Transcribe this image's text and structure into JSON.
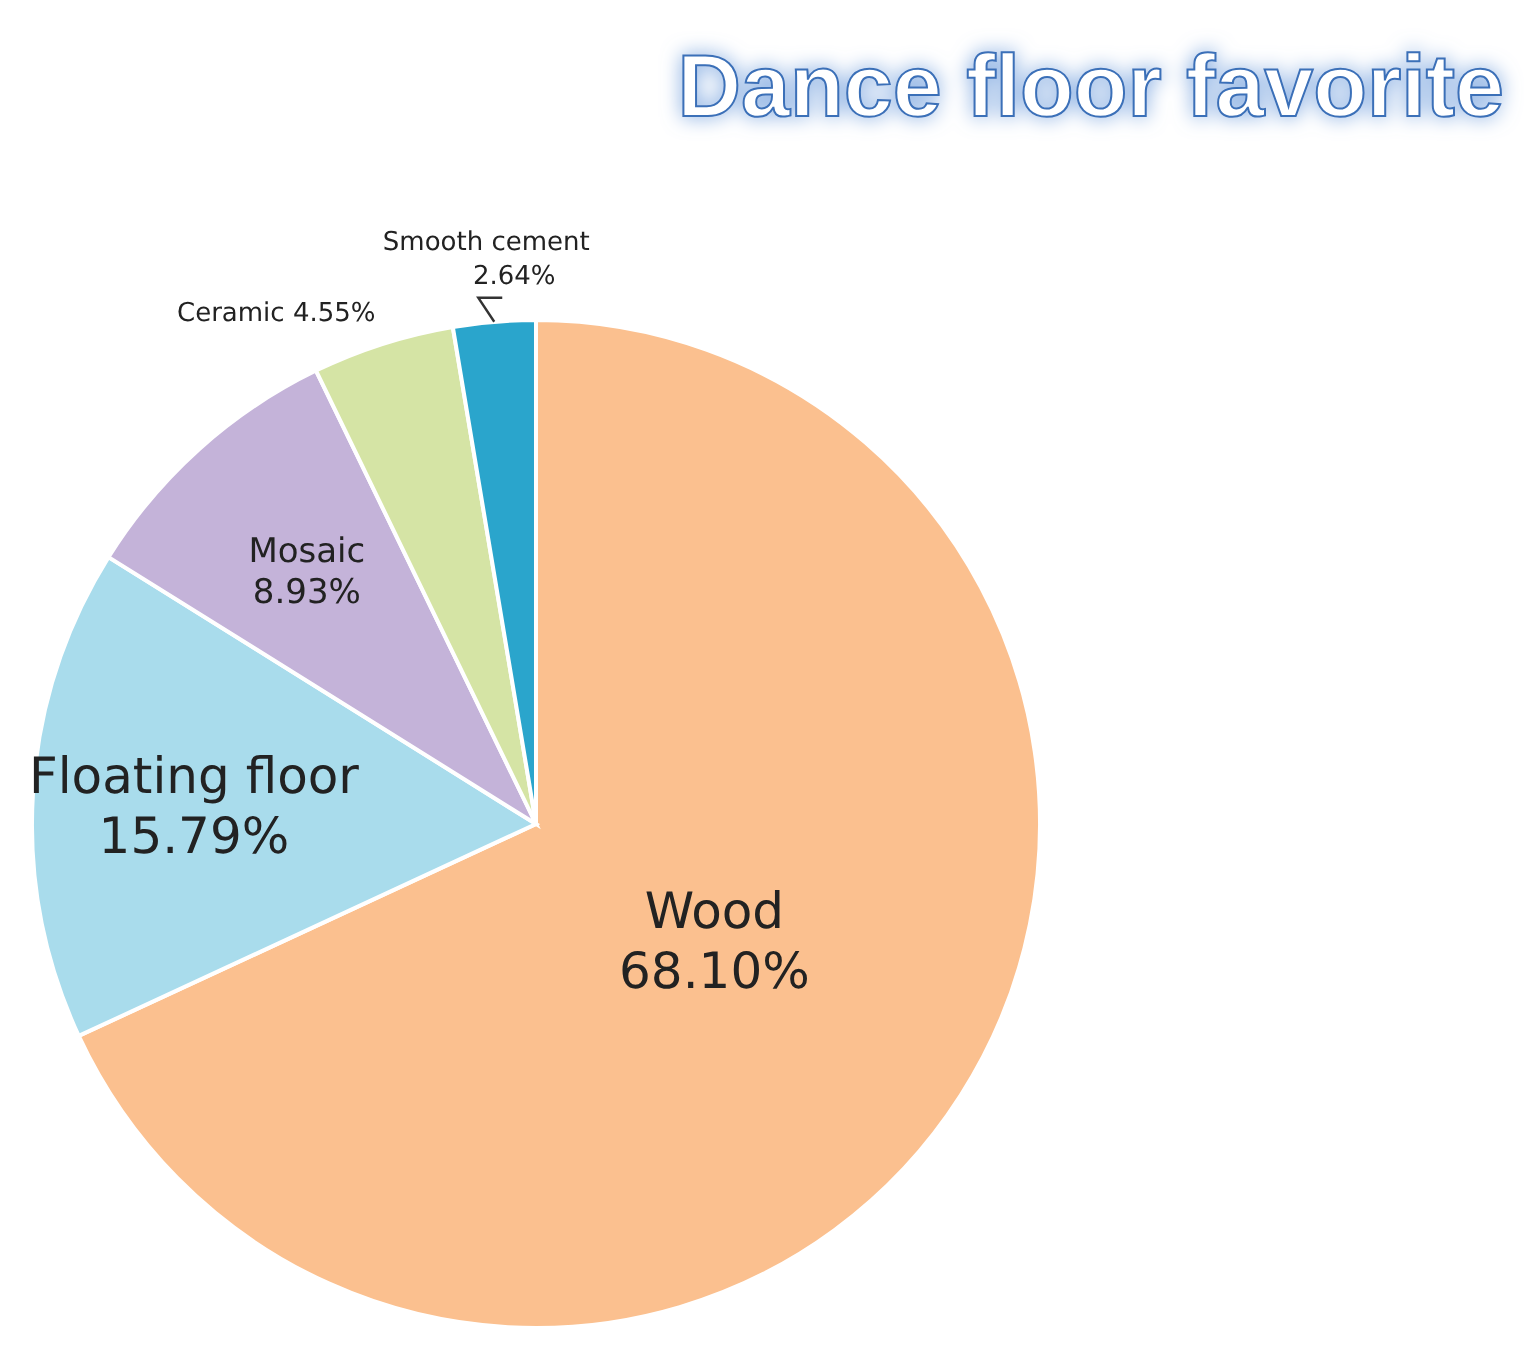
{
  "chart_data": {
    "type": "pie",
    "title": "Dance floor favorite",
    "categories": [
      "Wood",
      "Floating floor",
      "Mosaic",
      "Ceramic",
      "Smooth cement"
    ],
    "values": [
      68.1,
      15.79,
      8.93,
      4.55,
      2.64
    ],
    "value_labels": [
      "68.10%",
      "15.79%",
      "8.93%",
      "4.55%",
      "2.64%"
    ],
    "colors": [
      "#fbc08f",
      "#a9dcec",
      "#c4b3d9",
      "#d5e4a5",
      "#2aa5cc"
    ]
  }
}
